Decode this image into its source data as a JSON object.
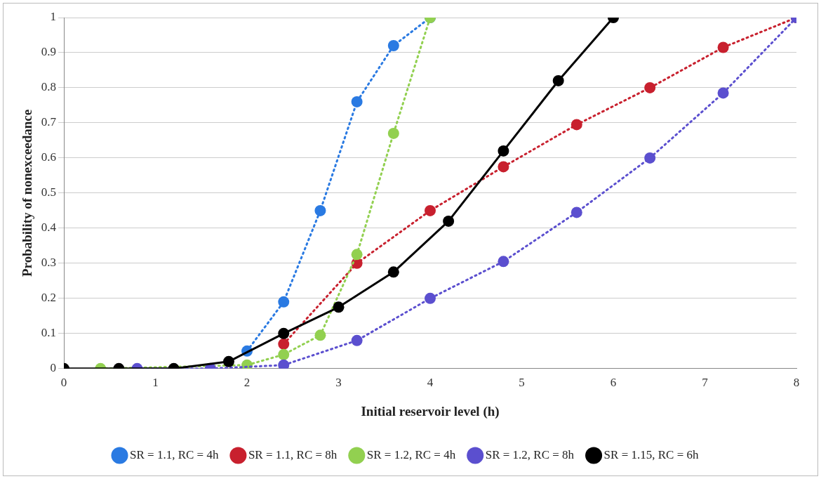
{
  "chart_data": {
    "type": "line",
    "xlabel": "Initial reservoir level (h)",
    "ylabel": "Probability of nonexceedance",
    "xlim": [
      0,
      8
    ],
    "xticks": [
      0,
      1,
      2,
      3,
      4,
      5,
      6,
      7,
      8
    ],
    "ylim": [
      0,
      1
    ],
    "yticks": [
      0,
      0.1,
      0.2,
      0.3,
      0.4,
      0.5,
      0.6,
      0.7,
      0.8,
      0.9,
      1
    ],
    "grid": "y",
    "legend": "bottom",
    "marker": "circle",
    "series": [
      {
        "name": "SR = 1.1, RC = 4h",
        "color": "#2a7ae2",
        "line_style": "dotted",
        "x": [
          2.0,
          2.4,
          2.8,
          3.2,
          3.6,
          4.0
        ],
        "values": [
          0.05,
          0.19,
          0.45,
          0.76,
          0.92,
          1
        ]
      },
      {
        "name": "SR = 1.1, RC = 8h",
        "color": "#c8202e",
        "line_style": "dotted",
        "x": [
          2.4,
          3.2,
          4.0,
          4.8,
          5.6,
          6.4,
          7.2,
          8.0
        ],
        "values": [
          0.07,
          0.3,
          0.45,
          0.575,
          0.695,
          0.8,
          0.915,
          1
        ]
      },
      {
        "name": "SR = 1.2, RC = 4h",
        "color": "#92d050",
        "line_style": "dotted",
        "x": [
          0.4,
          2.0,
          2.4,
          2.8,
          3.2,
          3.6,
          4.0
        ],
        "values": [
          0,
          0.01,
          0.04,
          0.095,
          0.325,
          0.67,
          1
        ]
      },
      {
        "name": "SR = 1.2, RC = 8h",
        "color": "#5b4fcf",
        "line_style": "dotted",
        "x": [
          0.8,
          1.6,
          2.4,
          3.2,
          4.0,
          4.8,
          5.6,
          6.4,
          7.2,
          8.0
        ],
        "values": [
          0,
          0,
          0.01,
          0.08,
          0.2,
          0.305,
          0.445,
          0.6,
          0.785,
          1
        ]
      },
      {
        "name": "SR = 1.15, RC = 6h",
        "color": "#000000",
        "line_style": "solid",
        "x": [
          0,
          0.6,
          1.2,
          1.8,
          2.4,
          3.0,
          3.6,
          4.2,
          4.8,
          5.4,
          6.0
        ],
        "values": [
          0,
          0,
          0,
          0.02,
          0.1,
          0.175,
          0.275,
          0.42,
          0.62,
          0.82,
          1
        ]
      }
    ]
  }
}
